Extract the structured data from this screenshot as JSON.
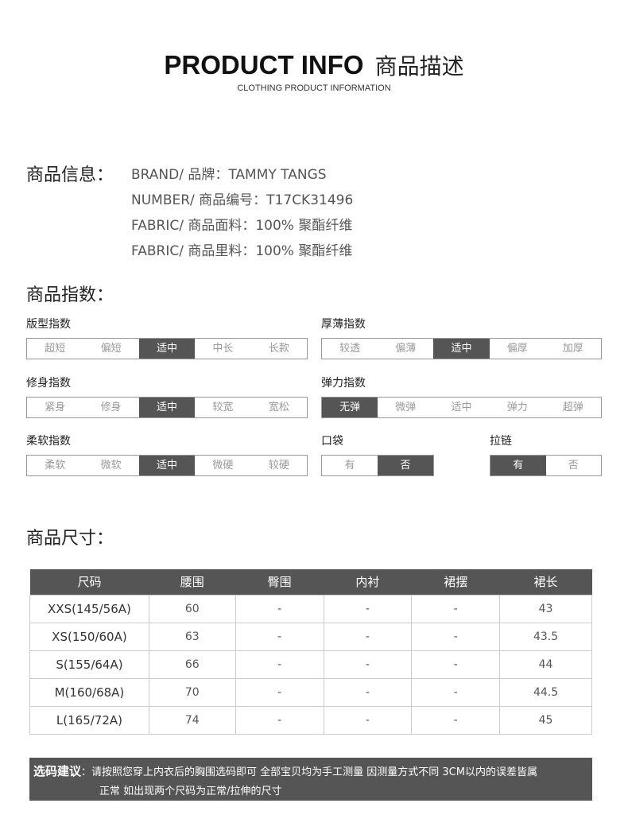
{
  "header": {
    "title_en": "PRODUCT INFO",
    "title_cn": "商品描述",
    "subtitle": "CLOTHING PRODUCT INFORMATION"
  },
  "info": {
    "heading": "商品信息：",
    "lines": [
      "BRAND/ 品牌：TAMMY TANGS",
      "NUMBER/ 商品编号：T17CK31496",
      "FABRIC/ 商品面料：100% 聚酯纤维",
      "FABRIC/ 商品里料：100% 聚酯纤维"
    ]
  },
  "index": {
    "heading": "商品指数：",
    "groups": [
      {
        "label": "版型指数",
        "options": [
          "超短",
          "偏短",
          "适中",
          "中长",
          "长款"
        ],
        "selected": 2
      },
      {
        "label": "厚薄指数",
        "options": [
          "较透",
          "偏薄",
          "适中",
          "偏厚",
          "加厚"
        ],
        "selected": 2
      },
      {
        "label": "修身指数",
        "options": [
          "紧身",
          "修身",
          "适中",
          "较宽",
          "宽松"
        ],
        "selected": 2
      },
      {
        "label": "弹力指数",
        "options": [
          "无弹",
          "微弹",
          "适中",
          "弹力",
          "超弹"
        ],
        "selected": 0
      },
      {
        "label": "柔软指数",
        "options": [
          "柔软",
          "微软",
          "适中",
          "微硬",
          "较硬"
        ],
        "selected": 2
      },
      {
        "label": "口袋",
        "options": [
          "有",
          "否"
        ],
        "selected": 1
      },
      {
        "label": "拉链",
        "options": [
          "有",
          "否"
        ],
        "selected": 0
      }
    ]
  },
  "size": {
    "heading": "商品尺寸：",
    "columns": [
      "尺码",
      "腰围",
      "臀围",
      "内衬",
      "裙摆",
      "裙长"
    ],
    "rows": [
      [
        "XXS(145/56A)",
        "60",
        "-",
        "-",
        "-",
        "43"
      ],
      [
        "XS(150/60A)",
        "63",
        "-",
        "-",
        "-",
        "43.5"
      ],
      [
        "S(155/64A)",
        "66",
        "-",
        "-",
        "-",
        "44"
      ],
      [
        "M(160/68A)",
        "70",
        "-",
        "-",
        "-",
        "44.5"
      ],
      [
        "L(165/72A)",
        "74",
        "-",
        "-",
        "-",
        "45"
      ]
    ]
  },
  "note": {
    "label": "选码建议",
    "text1": "：请按照您穿上内衣后的胸围选码即可 全部宝贝均为手工测量 因测量方式不同 3CM以内的误差皆属",
    "text2": "正常  如出现两个尺码为正常/拉伸的尺寸"
  }
}
